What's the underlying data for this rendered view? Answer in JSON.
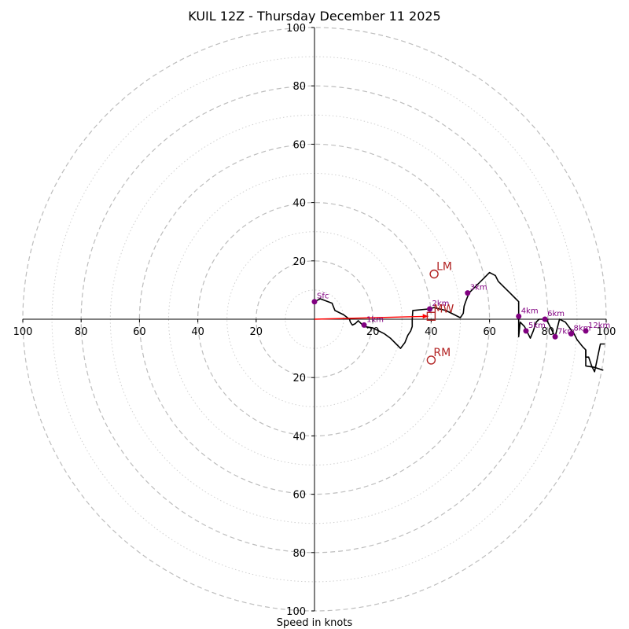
{
  "chart_data": {
    "type": "hodograph",
    "title": "KUIL 12Z - Thursday December 11 2025",
    "xlabel": "Speed in knots",
    "ylabel": "",
    "range": [
      -100,
      100
    ],
    "rings_major": [
      20,
      40,
      60,
      80,
      100
    ],
    "rings_minor": [
      10,
      30,
      50,
      70,
      90
    ],
    "x_ticks": [
      "100",
      "80",
      "60",
      "40",
      "20",
      "20",
      "40",
      "60",
      "80",
      "100"
    ],
    "x_tick_values": [
      -100,
      -80,
      -60,
      -40,
      -20,
      20,
      40,
      60,
      80,
      100
    ],
    "y_ticks": [
      "100",
      "80",
      "60",
      "40",
      "20",
      "20",
      "40",
      "60",
      "80",
      "100"
    ],
    "y_tick_values": [
      100,
      80,
      60,
      40,
      20,
      -20,
      -40,
      -60,
      -80,
      -100
    ],
    "hodograph_uv": [
      [
        0,
        6
      ],
      [
        2,
        7
      ],
      [
        6,
        5.5
      ],
      [
        7,
        3
      ],
      [
        10,
        1.5
      ],
      [
        12,
        0
      ],
      [
        12.3,
        -1
      ],
      [
        13,
        -2
      ],
      [
        14,
        -1.5
      ],
      [
        15,
        -0.5
      ],
      [
        16,
        -1.5
      ],
      [
        17,
        -2.5
      ],
      [
        20,
        -3
      ],
      [
        22,
        -4
      ],
      [
        24,
        -5
      ],
      [
        26,
        -6.5
      ],
      [
        28,
        -8.5
      ],
      [
        29.5,
        -10
      ],
      [
        31,
        -8
      ],
      [
        32,
        -5.5
      ],
      [
        33,
        -4
      ],
      [
        33.5,
        -2.5
      ],
      [
        33.5,
        0
      ],
      [
        33.7,
        3
      ],
      [
        39,
        3.5
      ],
      [
        41,
        4
      ],
      [
        45,
        3
      ],
      [
        48,
        1.5
      ],
      [
        50,
        0.5
      ],
      [
        51,
        2
      ],
      [
        51.3,
        4.5
      ],
      [
        52,
        6.5
      ],
      [
        53,
        9
      ],
      [
        55,
        11
      ],
      [
        58,
        14
      ],
      [
        60,
        16
      ],
      [
        62,
        15
      ],
      [
        63,
        13
      ],
      [
        65,
        11
      ],
      [
        67,
        9
      ],
      [
        69,
        7
      ],
      [
        70,
        6
      ],
      [
        70,
        4
      ],
      [
        70,
        1
      ],
      [
        70,
        -2
      ],
      [
        70,
        -6
      ],
      [
        70.5,
        -1
      ],
      [
        72,
        -2.5
      ],
      [
        73,
        -4.5
      ],
      [
        74,
        -6.5
      ],
      [
        75,
        -4
      ],
      [
        76,
        -1
      ],
      [
        77,
        0
      ],
      [
        79,
        0
      ],
      [
        80,
        -1
      ],
      [
        81,
        -3
      ],
      [
        82,
        -5
      ],
      [
        82.5,
        -6
      ],
      [
        83,
        -4
      ],
      [
        84,
        0
      ],
      [
        86,
        -1
      ],
      [
        87.5,
        -3
      ],
      [
        89,
        -5
      ],
      [
        90,
        -7
      ],
      [
        92,
        -9.5
      ],
      [
        93,
        -10.5
      ],
      [
        93,
        -13
      ],
      [
        94,
        -13
      ],
      [
        95,
        -16
      ],
      [
        96,
        -18
      ],
      [
        98,
        -8.5
      ],
      [
        99.5,
        -8.5
      ]
    ],
    "hodograph_tail_uv": [
      [
        93,
        -10.5
      ],
      [
        93,
        -16
      ],
      [
        96,
        -16.5
      ],
      [
        99,
        -17.5
      ]
    ],
    "height_points": [
      {
        "label": "Sfc",
        "u": 0,
        "v": 6
      },
      {
        "label": "1km",
        "u": 17,
        "v": -2
      },
      {
        "label": "2km",
        "u": 39.5,
        "v": 3.5
      },
      {
        "label": "3km",
        "u": 52.5,
        "v": 9
      },
      {
        "label": "4km",
        "u": 70,
        "v": 1
      },
      {
        "label": "5km",
        "u": 72.5,
        "v": -4
      },
      {
        "label": "6km",
        "u": 79,
        "v": 0
      },
      {
        "label": "7km",
        "u": 82.5,
        "v": -6
      },
      {
        "label": "8km",
        "u": 88,
        "v": -5
      },
      {
        "label": "12km",
        "u": 93,
        "v": -4
      }
    ],
    "storm_markers": [
      {
        "label": "LM",
        "shape": "circle",
        "u": 41,
        "v": 15.5
      },
      {
        "label": "MW",
        "shape": "square",
        "u": 40,
        "v": 1
      },
      {
        "label": "RM",
        "shape": "circle",
        "u": 40,
        "v": -14
      }
    ],
    "shear_vector": {
      "from": [
        0,
        0
      ],
      "to": [
        39,
        1
      ],
      "color": "#ff0000"
    },
    "colors": {
      "hodograph": "#000000",
      "height_points": "#800080",
      "markers": "#b22222",
      "rings": "#bdbdbd"
    }
  }
}
